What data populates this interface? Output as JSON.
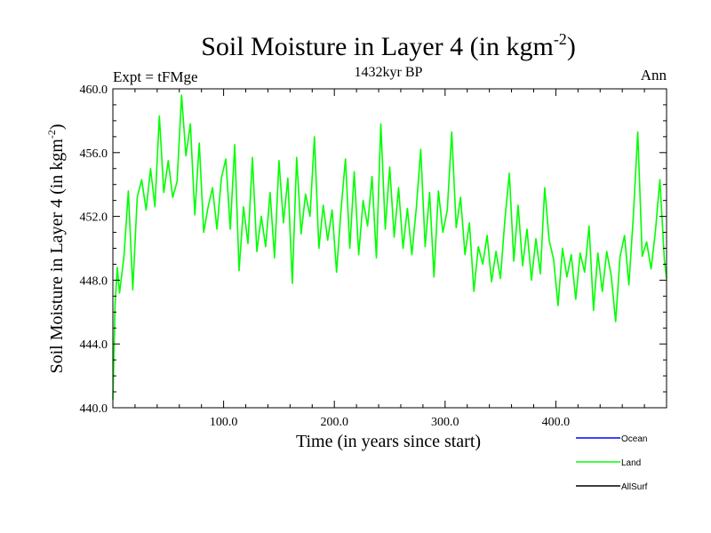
{
  "chart_data": {
    "type": "line",
    "title": "Soil Moisture in Layer 4 (in kgm",
    "title_sup": "-2",
    "title_close": ")",
    "subtitle_left": "Expt = tFMge",
    "subtitle_center": "1432kyr BP",
    "subtitle_right": "Ann",
    "xlabel": "Time (in years since start)",
    "ylabel": "Soil Moisture in Layer 4 (in kgm",
    "ylabel_sup": "-2",
    "ylabel_close": ")",
    "xlim": [
      0,
      500
    ],
    "ylim": [
      440,
      460
    ],
    "x_ticks": [
      100,
      200,
      300,
      400
    ],
    "x_tick_labels": [
      "100.0",
      "200.0",
      "300.0",
      "400.0"
    ],
    "y_ticks": [
      440,
      444,
      448,
      452,
      456,
      460
    ],
    "y_tick_labels": [
      "440.0",
      "444.0",
      "448.0",
      "452.0",
      "456.0",
      "460.0"
    ],
    "legend": [
      {
        "name": "Ocean",
        "color": "#0000ff"
      },
      {
        "name": "Land",
        "color": "#00ff00"
      },
      {
        "name": "AllSurf",
        "color": "#000000"
      }
    ],
    "series": [
      {
        "name": "Land",
        "color": "#00ff00",
        "x": [
          0,
          2,
          4,
          6,
          10,
          14,
          18,
          22,
          26,
          30,
          34,
          38,
          42,
          46,
          50,
          54,
          58,
          62,
          66,
          70,
          74,
          78,
          82,
          86,
          90,
          94,
          98,
          102,
          106,
          110,
          114,
          118,
          122,
          126,
          130,
          134,
          138,
          142,
          146,
          150,
          154,
          158,
          162,
          166,
          170,
          174,
          178,
          182,
          186,
          190,
          194,
          198,
          202,
          206,
          210,
          214,
          218,
          222,
          226,
          230,
          234,
          238,
          242,
          246,
          250,
          254,
          258,
          262,
          266,
          270,
          274,
          278,
          282,
          286,
          290,
          294,
          298,
          302,
          306,
          310,
          314,
          318,
          322,
          326,
          330,
          334,
          338,
          342,
          346,
          350,
          354,
          358,
          362,
          366,
          370,
          374,
          378,
          382,
          386,
          390,
          394,
          398,
          402,
          406,
          410,
          414,
          418,
          422,
          426,
          430,
          434,
          438,
          442,
          446,
          450,
          454,
          458,
          462,
          466,
          470,
          474,
          478,
          482,
          486,
          490,
          494,
          498,
          500
        ],
        "values": [
          440.5,
          446.5,
          448.8,
          447.2,
          449.5,
          453.6,
          447.4,
          453.2,
          454.3,
          452.4,
          455.0,
          452.6,
          458.3,
          453.5,
          455.5,
          453.2,
          454.2,
          459.6,
          455.8,
          457.8,
          452.1,
          456.6,
          451.0,
          452.6,
          453.8,
          451.2,
          454.4,
          455.6,
          451.2,
          456.5,
          448.6,
          452.6,
          450.3,
          455.7,
          449.8,
          452.0,
          450.1,
          453.5,
          449.4,
          455.5,
          451.6,
          454.4,
          447.8,
          455.7,
          450.9,
          453.4,
          452.0,
          457.0,
          450.0,
          452.7,
          450.5,
          452.4,
          448.5,
          452.4,
          455.6,
          450.0,
          454.8,
          449.6,
          453.0,
          451.4,
          454.5,
          449.4,
          457.8,
          451.2,
          455.1,
          450.7,
          453.8,
          450.0,
          452.5,
          449.6,
          452.5,
          456.2,
          450.1,
          453.5,
          448.2,
          453.6,
          451.0,
          452.4,
          457.3,
          451.3,
          453.2,
          449.6,
          451.6,
          447.3,
          450.1,
          449.0,
          450.8,
          447.9,
          449.8,
          448.1,
          451.8,
          454.7,
          449.2,
          452.7,
          448.9,
          451.2,
          448.0,
          450.6,
          448.4,
          453.8,
          450.5,
          449.3,
          446.4,
          450.0,
          448.2,
          449.6,
          446.8,
          449.7,
          448.5,
          451.4,
          446.1,
          449.7,
          447.3,
          449.8,
          448.3,
          445.4,
          449.5,
          450.8,
          447.7,
          452.0,
          457.3,
          449.5,
          450.4,
          448.7,
          451.1,
          454.3,
          449.3,
          448.1
        ]
      }
    ]
  }
}
